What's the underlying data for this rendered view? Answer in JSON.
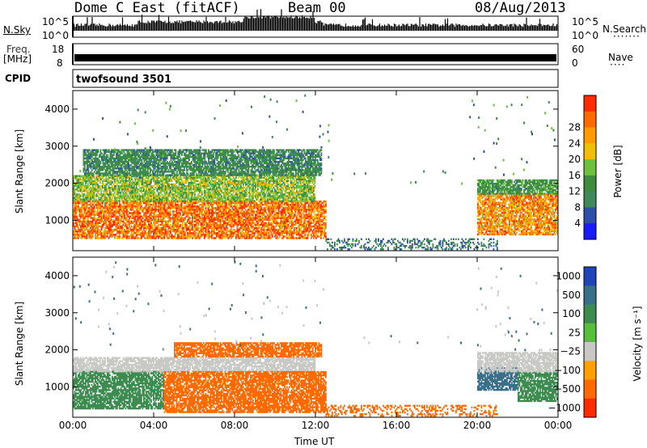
{
  "header": {
    "station": "Dome C East (fitACF)",
    "beam": "Beam 00",
    "date": "08/Aug/2013"
  },
  "strips": {
    "nsky_label": "N.Sky",
    "nsky_ticks": [
      "10^5",
      "10^0"
    ],
    "nsearch_label": "N.Search",
    "nsearch_ticks": [
      "10^5",
      "10^0"
    ],
    "freq_label": "Freq.",
    "freq_unit": "[MHz]",
    "freq_ticks": [
      "18",
      "8"
    ],
    "nave_label": "Nave",
    "nave_ticks": [
      "60",
      "0"
    ],
    "cpid_label": "CPID",
    "cpid_value": "twofsound 3501"
  },
  "chart_data": [
    {
      "type": "heatmap",
      "name": "power",
      "ylabel": "Slant Range [km]",
      "xlabel": "",
      "x_ticks": [
        "00:00",
        "04:00",
        "08:00",
        "12:00",
        "16:00",
        "20:00",
        "00:00"
      ],
      "y_ticks": [
        "1000",
        "2000",
        "3000",
        "4000"
      ],
      "xlim_hours": [
        0,
        24
      ],
      "ylim_km": [
        180,
        4500
      ],
      "colorbar": {
        "label": "Power [dB]",
        "ticks": [
          "4",
          "8",
          "12",
          "16",
          "20",
          "24",
          "28"
        ],
        "range": [
          0,
          32
        ],
        "colors": [
          "#1a1aff",
          "#2e4fa8",
          "#3f8a5a",
          "#3c8c3c",
          "#6cc23c",
          "#f0c000",
          "#ff9a00",
          "#ff6a00",
          "#ff2a00"
        ]
      },
      "regions": [
        {
          "t0": 0.0,
          "t1": 12.5,
          "r0": 500,
          "r1": 1500,
          "value": 26
        },
        {
          "t0": 0.0,
          "t1": 12.0,
          "r0": 1500,
          "r1": 2200,
          "value": 16
        },
        {
          "t0": 0.5,
          "t1": 12.3,
          "r0": 2200,
          "r1": 2900,
          "value": 10
        },
        {
          "t0": 20.0,
          "t1": 24.0,
          "r0": 600,
          "r1": 1700,
          "value": 24
        },
        {
          "t0": 20.0,
          "t1": 24.0,
          "r0": 1700,
          "r1": 2100,
          "value": 12
        },
        {
          "t0": 12.5,
          "t1": 21.0,
          "r0": 200,
          "r1": 500,
          "value": 8
        }
      ]
    },
    {
      "type": "heatmap",
      "name": "velocity",
      "ylabel": "Slant Range [km]",
      "xlabel": "Time UT",
      "x_ticks": [
        "00:00",
        "04:00",
        "08:00",
        "12:00",
        "16:00",
        "20:00",
        "00:00"
      ],
      "y_ticks": [
        "1000",
        "2000",
        "3000",
        "4000"
      ],
      "xlim_hours": [
        0,
        24
      ],
      "ylim_km": [
        180,
        4500
      ],
      "colorbar": {
        "label": "Velocity [m s⁻¹]",
        "ticks": [
          "1000",
          "500",
          "100",
          "25",
          "−25",
          "−100",
          "−500",
          "−1000"
        ],
        "colors": [
          "#2244bb",
          "#3a6f8a",
          "#3c8c50",
          "#55c03a",
          "#c8c8c4",
          "#ffa000",
          "#ff6a00",
          "#ff2a00"
        ]
      },
      "regions": [
        {
          "t0": 0.0,
          "t1": 4.5,
          "r0": 400,
          "r1": 1400,
          "value": 100
        },
        {
          "t0": 0.0,
          "t1": 12.0,
          "r0": 1400,
          "r1": 1800,
          "value": 0
        },
        {
          "t0": 4.5,
          "t1": 12.5,
          "r0": 300,
          "r1": 1400,
          "value": -100
        },
        {
          "t0": 5.0,
          "t1": 12.3,
          "r0": 1800,
          "r1": 2200,
          "value": -200
        },
        {
          "t0": 20.0,
          "t1": 22.0,
          "r0": 900,
          "r1": 1500,
          "value": 500
        },
        {
          "t0": 22.0,
          "t1": 24.0,
          "r0": 600,
          "r1": 1400,
          "value": 100
        },
        {
          "t0": 20.0,
          "t1": 24.0,
          "r0": 1400,
          "r1": 1900,
          "value": 0
        },
        {
          "t0": 12.5,
          "t1": 21.0,
          "r0": 200,
          "r1": 500,
          "value": -100
        }
      ]
    }
  ]
}
